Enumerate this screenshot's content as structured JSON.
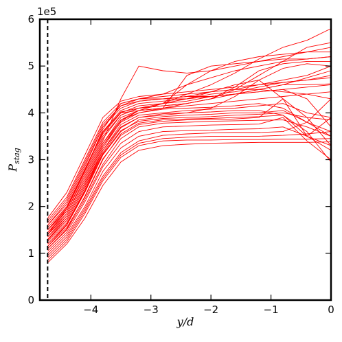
{
  "chart_data": {
    "type": "line",
    "title": "",
    "xlabel": "y/d",
    "ylabel_main": "P",
    "ylabel_sub": "stag",
    "offset_text": "1e5",
    "xlim": [
      -4.85,
      0
    ],
    "ylim": [
      0,
      6
    ],
    "x_ticks": [
      -4,
      -3,
      -2,
      -1,
      0
    ],
    "x_tick_labels": [
      "−4",
      "−3",
      "−2",
      "−1",
      "0"
    ],
    "y_ticks": [
      0,
      1,
      2,
      3,
      4,
      5,
      6
    ],
    "y_tick_labels": [
      "0",
      "1",
      "2",
      "3",
      "4",
      "5",
      "6"
    ],
    "grid": false,
    "line_color": "#ff0000",
    "reference_line": {
      "x": -4.72,
      "style": "dashed",
      "color": "#000000"
    },
    "x": [
      -4.72,
      -4.4,
      -4.1,
      -3.8,
      -3.5,
      -3.2,
      -2.8,
      -2.4,
      -2.0,
      -1.6,
      -1.2,
      -0.8,
      -0.4,
      0.0
    ],
    "series": [
      {
        "values": [
          0.85,
          1.25,
          1.85,
          2.55,
          3.05,
          3.3,
          3.4,
          3.42,
          3.42,
          3.43,
          3.43,
          3.44,
          3.44,
          3.45
        ]
      },
      {
        "values": [
          0.8,
          1.2,
          1.75,
          2.45,
          2.95,
          3.2,
          3.3,
          3.33,
          3.35,
          3.36,
          3.37,
          3.37,
          3.37,
          3.38
        ]
      },
      {
        "values": [
          0.9,
          1.3,
          1.9,
          2.6,
          3.1,
          3.35,
          3.45,
          3.48,
          3.5,
          3.5,
          3.5,
          3.52,
          3.55,
          3.6
        ]
      },
      {
        "values": [
          0.95,
          1.35,
          1.95,
          2.65,
          3.15,
          3.4,
          3.52,
          3.55,
          3.57,
          3.58,
          3.58,
          3.6,
          3.8,
          3.5
        ]
      },
      {
        "values": [
          1.0,
          1.4,
          2.0,
          2.75,
          3.25,
          3.5,
          3.6,
          3.62,
          3.63,
          3.65,
          3.66,
          3.7,
          3.5,
          3.3
        ]
      },
      {
        "values": [
          1.05,
          1.45,
          2.1,
          2.85,
          3.35,
          3.6,
          3.7,
          3.72,
          3.74,
          3.75,
          3.76,
          3.9,
          3.4,
          3.0
        ]
      },
      {
        "values": [
          1.1,
          1.5,
          2.15,
          2.9,
          3.45,
          3.7,
          3.78,
          3.8,
          3.82,
          3.83,
          3.84,
          3.85,
          3.7,
          3.5
        ]
      },
      {
        "values": [
          1.15,
          1.55,
          2.2,
          3.0,
          3.55,
          3.78,
          3.85,
          3.87,
          3.88,
          3.9,
          3.92,
          3.95,
          3.6,
          2.95
        ]
      },
      {
        "values": [
          1.2,
          1.6,
          2.3,
          3.1,
          3.6,
          3.85,
          3.92,
          3.95,
          3.97,
          4.0,
          4.0,
          4.05,
          3.8,
          3.6
        ]
      },
      {
        "values": [
          1.25,
          1.65,
          2.35,
          3.15,
          3.68,
          3.9,
          3.98,
          4.0,
          4.02,
          4.05,
          4.05,
          3.95,
          3.5,
          3.2
        ]
      },
      {
        "values": [
          1.3,
          1.7,
          2.4,
          3.2,
          3.75,
          3.95,
          4.0,
          4.05,
          4.08,
          4.1,
          4.15,
          4.2,
          4.0,
          3.9
        ]
      },
      {
        "values": [
          1.35,
          1.75,
          2.45,
          3.3,
          3.8,
          4.0,
          4.08,
          4.1,
          4.12,
          4.15,
          4.2,
          4.1,
          3.8,
          4.3
        ]
      },
      {
        "values": [
          1.4,
          1.8,
          2.5,
          3.35,
          3.85,
          4.05,
          4.1,
          4.15,
          4.2,
          4.25,
          4.3,
          4.35,
          4.4,
          4.45
        ]
      },
      {
        "values": [
          1.45,
          1.85,
          2.6,
          3.45,
          3.95,
          4.1,
          4.15,
          4.2,
          4.3,
          4.4,
          4.45,
          4.5,
          4.55,
          4.6
        ]
      },
      {
        "values": [
          1.2,
          1.62,
          2.32,
          3.12,
          3.62,
          3.82,
          3.88,
          3.9,
          3.92,
          3.95,
          3.97,
          4.0,
          3.9,
          3.85
        ]
      },
      {
        "values": [
          1.1,
          1.52,
          2.22,
          3.02,
          3.52,
          3.75,
          3.82,
          3.85,
          3.85,
          3.87,
          3.9,
          4.3,
          3.9,
          3.3
        ]
      },
      {
        "values": [
          1.5,
          1.9,
          2.7,
          3.55,
          4.0,
          4.15,
          4.2,
          4.25,
          4.35,
          4.4,
          4.5,
          4.6,
          4.6,
          4.62
        ]
      },
      {
        "values": [
          1.55,
          2.0,
          2.8,
          3.6,
          4.05,
          4.2,
          4.25,
          4.3,
          4.4,
          4.45,
          4.55,
          4.65,
          4.7,
          4.8
        ]
      },
      {
        "values": [
          1.6,
          2.1,
          2.9,
          3.7,
          4.1,
          4.25,
          4.3,
          4.35,
          4.45,
          4.5,
          4.6,
          4.7,
          4.8,
          5.0
        ]
      },
      {
        "values": [
          1.4,
          1.95,
          2.75,
          3.65,
          4.2,
          4.3,
          4.3,
          4.3,
          4.35,
          4.4,
          4.5,
          4.6,
          4.75,
          4.9
        ]
      },
      {
        "values": [
          1.65,
          2.15,
          2.95,
          3.75,
          4.15,
          4.25,
          4.3,
          4.35,
          4.35,
          4.4,
          4.45,
          4.5,
          4.3,
          3.7
        ]
      },
      {
        "values": [
          1.7,
          2.2,
          3.0,
          3.8,
          4.2,
          4.3,
          4.35,
          4.4,
          4.45,
          4.5,
          4.5,
          4.45,
          4.4,
          4.3
        ]
      },
      {
        "values": [
          1.75,
          2.3,
          3.1,
          3.9,
          4.25,
          4.35,
          4.4,
          4.45,
          4.5,
          4.55,
          4.6,
          4.65,
          4.7,
          4.75
        ]
      },
      {
        "values": [
          1.5,
          1.95,
          2.75,
          3.6,
          4.0,
          4.05,
          4.1,
          4.8,
          5.0,
          5.05,
          5.1,
          5.15,
          5.15,
          5.2
        ]
      },
      {
        "values": [
          1.45,
          1.9,
          2.65,
          3.5,
          3.95,
          4.1,
          4.2,
          4.6,
          4.9,
          5.1,
          5.2,
          5.25,
          5.3,
          5.3
        ]
      },
      {
        "values": [
          1.4,
          1.85,
          2.55,
          3.4,
          4.3,
          5.0,
          4.9,
          4.85,
          4.9,
          5.0,
          5.1,
          5.2,
          5.3,
          5.4
        ]
      },
      {
        "values": [
          1.35,
          1.8,
          2.5,
          3.35,
          3.9,
          4.05,
          4.2,
          4.4,
          4.6,
          4.85,
          5.15,
          5.4,
          5.55,
          5.8
        ]
      },
      {
        "values": [
          1.3,
          1.75,
          2.45,
          3.3,
          3.85,
          4.0,
          4.1,
          4.2,
          4.3,
          4.5,
          4.8,
          5.1,
          5.4,
          5.5
        ]
      },
      {
        "values": [
          1.5,
          1.98,
          2.78,
          3.58,
          4.02,
          4.1,
          4.15,
          4.2,
          4.3,
          4.55,
          4.9,
          5.05,
          5.1,
          5.1
        ]
      },
      {
        "values": [
          1.28,
          1.7,
          2.4,
          3.25,
          3.82,
          4.05,
          4.2,
          4.3,
          4.45,
          4.6,
          4.7,
          4.95,
          5.05,
          5.0
        ]
      },
      {
        "values": [
          1.6,
          2.05,
          2.85,
          3.7,
          4.15,
          4.3,
          4.4,
          4.6,
          4.75,
          4.9,
          5.0,
          5.1,
          5.15,
          5.2
        ]
      },
      {
        "values": [
          1.15,
          1.6,
          2.35,
          3.2,
          3.7,
          3.9,
          3.95,
          4.0,
          4.1,
          4.35,
          4.7,
          4.3,
          3.5,
          3.9
        ]
      }
    ]
  }
}
